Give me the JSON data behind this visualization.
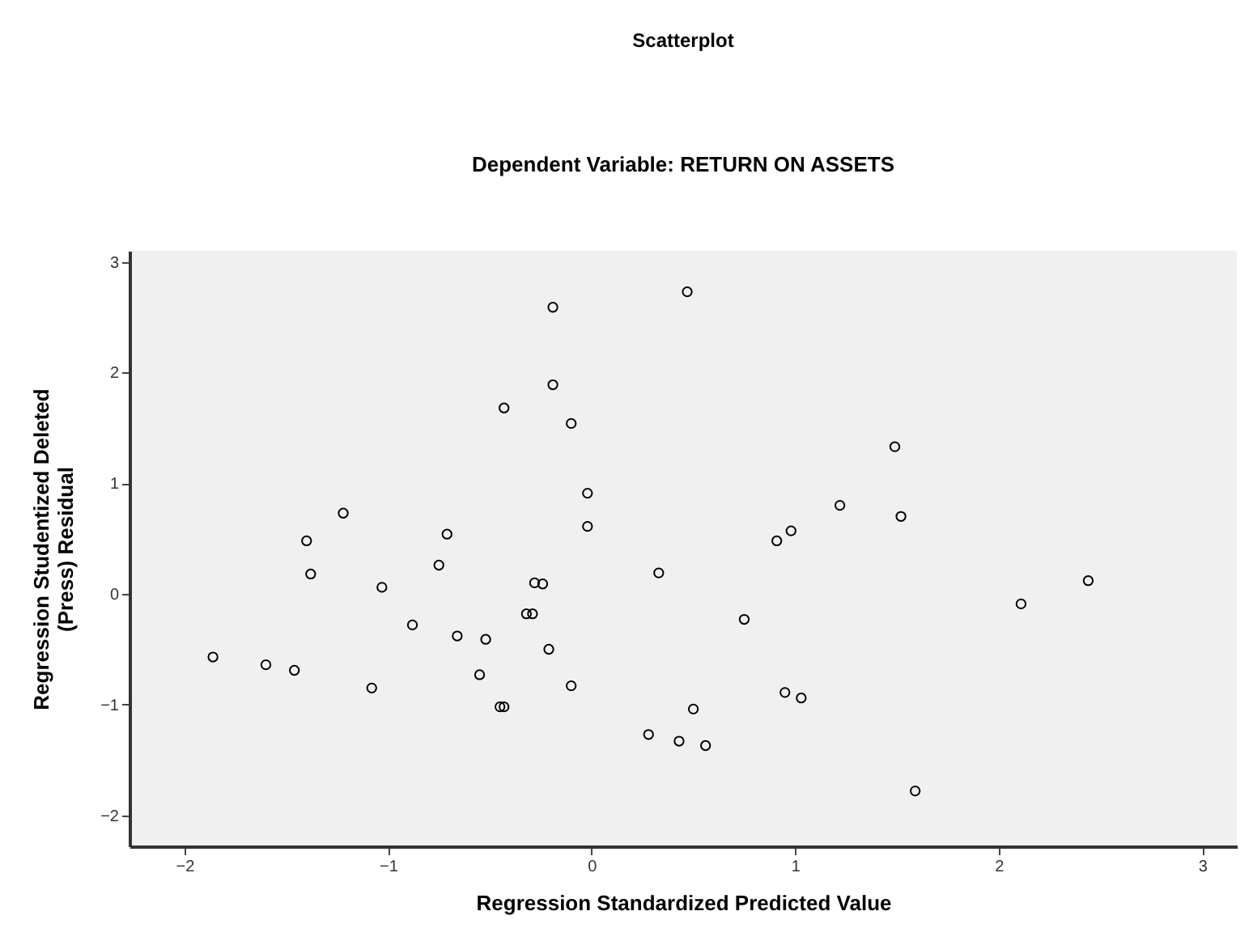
{
  "chart_data": {
    "type": "scatter",
    "title": "Scatterplot",
    "subtitle": "Dependent Variable: RETURN ON ASSETS",
    "xlabel": "Regression Standardized Predicted Value",
    "ylabel": "Regression Studentized Deleted\n(Press) Residual",
    "x": [
      -1.86,
      -1.6,
      -1.46,
      -1.4,
      -1.38,
      -1.22,
      -1.08,
      -1.03,
      -0.88,
      -0.75,
      -0.71,
      -0.66,
      -0.55,
      -0.52,
      -0.45,
      -0.43,
      -0.43,
      -0.32,
      -0.29,
      -0.28,
      -0.24,
      -0.21,
      -0.19,
      -0.19,
      -0.1,
      -0.1,
      -0.02,
      -0.02,
      0.28,
      0.43,
      0.56,
      0.5,
      0.33,
      0.75,
      0.95,
      1.03,
      1.59,
      2.11,
      2.44,
      0.91,
      0.98,
      1.49,
      1.52,
      1.22,
      0.47
    ],
    "series": [
      {
        "color": "#000000",
        "values": [
          -0.57,
          -0.64,
          -0.69,
          0.48,
          0.18,
          0.73,
          -0.85,
          0.06,
          -0.28,
          0.26,
          0.54,
          -0.38,
          -0.73,
          -0.41,
          -1.02,
          -1.02,
          1.68,
          -0.18,
          -0.18,
          0.1,
          0.09,
          -0.5,
          2.59,
          1.89,
          1.54,
          -0.83,
          0.91,
          0.61,
          -1.27,
          -1.33,
          -1.37,
          -1.04,
          0.19,
          -0.23,
          -0.89,
          -0.94,
          -1.78,
          -0.09,
          0.12,
          0.48,
          0.57,
          1.33,
          0.7,
          0.8,
          2.73
        ]
      }
    ],
    "xlim": [
      -2.27,
      3.17
    ],
    "ylim": [
      -2.28,
      3.1
    ],
    "xticks": [
      -2,
      -1,
      0,
      1,
      2,
      3
    ],
    "yticks": [
      -2,
      -1,
      0,
      1,
      2,
      3
    ],
    "marker": "circle",
    "grid": false
  }
}
